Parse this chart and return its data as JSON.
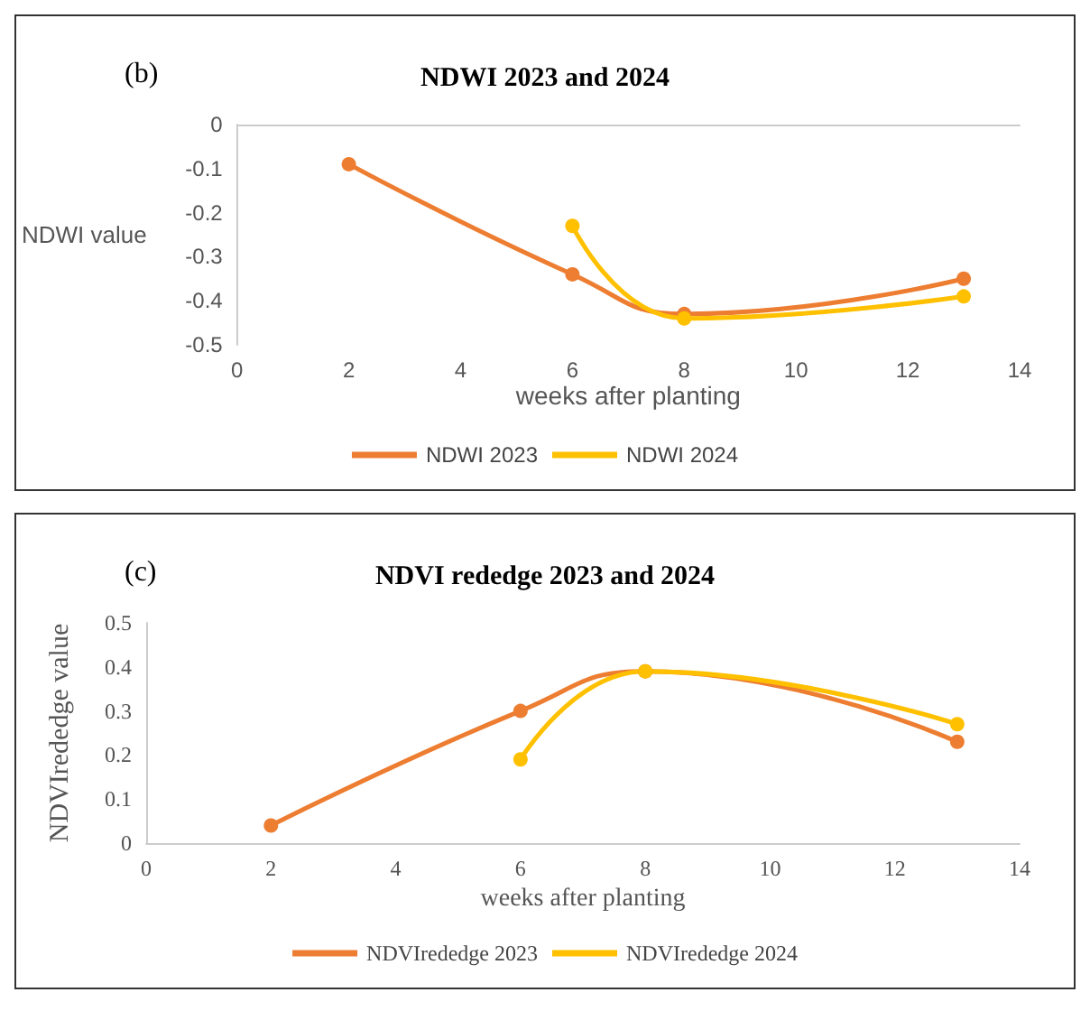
{
  "chart_data": [
    {
      "type": "line",
      "title": "NDWI 2023 and 2024",
      "xlabel": "weeks after planting",
      "ylabel": "NDWI value",
      "annotations": [
        "(b)"
      ],
      "xlim": [
        0,
        14
      ],
      "xticks": [
        0,
        2,
        4,
        6,
        8,
        10,
        12,
        14
      ],
      "ylim": [
        -0.5,
        0
      ],
      "yticks": [
        -0.5,
        -0.4,
        -0.3,
        -0.2,
        -0.1,
        0
      ],
      "grid": false,
      "legend": "bottom",
      "marker": "circle",
      "line_style": "solid",
      "series": [
        {
          "name": "NDWI 2023",
          "color": "#ed7d31",
          "x": [
            2,
            6,
            8,
            13
          ],
          "values": [
            -0.09,
            -0.34,
            -0.43,
            -0.35
          ]
        },
        {
          "name": "NDWI 2024",
          "color": "#ffc000",
          "x": [
            6,
            8,
            13
          ],
          "values": [
            -0.23,
            -0.44,
            -0.39
          ]
        }
      ]
    },
    {
      "type": "line",
      "title": "NDVI rededge 2023 and 2024",
      "xlabel": "weeks after planting",
      "ylabel": "NDVIrededge value",
      "annotations": [
        "(c)"
      ],
      "xlim": [
        0,
        14
      ],
      "xticks": [
        0,
        2,
        4,
        6,
        8,
        10,
        12,
        14
      ],
      "ylim": [
        0,
        0.5
      ],
      "yticks": [
        0,
        0.1,
        0.2,
        0.3,
        0.4,
        0.5
      ],
      "grid": false,
      "legend": "bottom",
      "marker": "circle",
      "line_style": "solid",
      "series": [
        {
          "name": "NDVIrededge 2023",
          "color": "#ed7d31",
          "x": [
            2,
            6,
            8,
            13
          ],
          "values": [
            0.04,
            0.3,
            0.39,
            0.23
          ]
        },
        {
          "name": "NDVIrededge 2024",
          "color": "#ffc000",
          "x": [
            6,
            8,
            13
          ],
          "values": [
            0.19,
            0.39,
            0.27
          ]
        }
      ]
    }
  ]
}
